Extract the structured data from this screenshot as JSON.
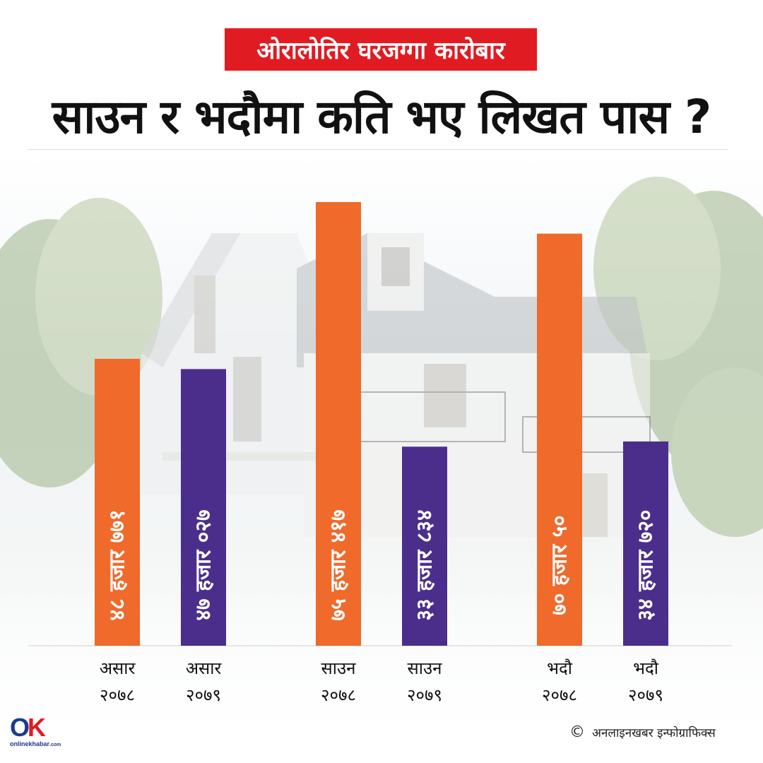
{
  "header": {
    "kicker": "ओरालोतिर घरजग्गा कारोबार",
    "title": "साउन र भदौमा कति भए लिखत पास ?"
  },
  "colors": {
    "orange": "#ef6a2b",
    "purple": "#4b2e8c",
    "red": "#e11b22"
  },
  "chart_data": {
    "type": "bar",
    "title": "साउन र भदौमा कति भए लिखत पास ?",
    "xlabel": "",
    "ylabel": "",
    "grid": false,
    "categories": [
      [
        "असार",
        "२०७८"
      ],
      [
        "असार",
        "२०७९"
      ],
      [
        "साउन",
        "२०७८"
      ],
      [
        "साउन",
        "२०७९"
      ],
      [
        "भदौ",
        "२०७८"
      ],
      [
        "भदौ",
        "२०७९"
      ]
    ],
    "values": [
      48771,
      47027,
      75417,
      33834,
      70050,
      34720
    ],
    "value_labels": [
      "४८ हजार ७७१",
      "४७ हजार ०२७",
      "७५ हजार ४१७",
      "३३ हजार ८३४",
      "७० हजार ५०",
      "३४ हजार ७२०"
    ],
    "bar_colors": [
      "#ef6a2b",
      "#4b2e8c",
      "#ef6a2b",
      "#4b2e8c",
      "#ef6a2b",
      "#4b2e8c"
    ]
  },
  "footer": {
    "credit": "अनलाइनखबर इन्फोग्राफिक्स",
    "copyright_symbol": "©",
    "logo_mark": "OK",
    "logo_brand": "onlinekhabar.com"
  }
}
